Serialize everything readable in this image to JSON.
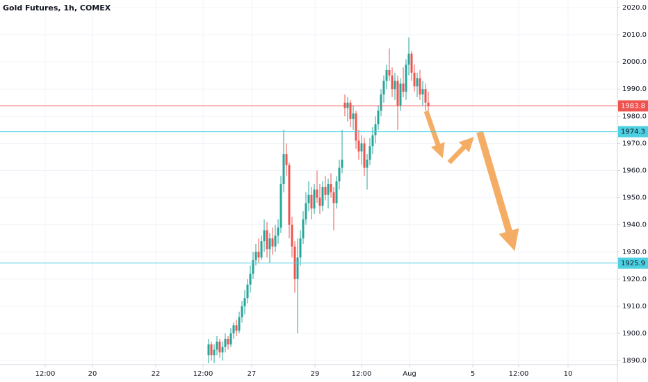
{
  "chart_data": {
    "type": "candlestick",
    "title": "Gold Futures, 1h, COMEX",
    "open": [
      1892,
      1896,
      1892,
      1894,
      1897,
      1893,
      1895,
      1898,
      1896,
      1900,
      1903,
      1901,
      1906,
      1910,
      1913,
      1918,
      1922,
      1927,
      1930,
      1928,
      1934,
      1938,
      1931,
      1935,
      1932,
      1936,
      1939,
      1955,
      1966,
      1962,
      1940,
      1932,
      1920,
      1928,
      1935,
      1942,
      1948,
      1951,
      1946,
      1953,
      1950,
      1947,
      1954,
      1951,
      1955,
      1952,
      1948,
      1956,
      1961,
      1985,
      1983,
      1985,
      1979,
      1981,
      1971,
      1967,
      1970,
      1961,
      1964,
      1969,
      1973,
      1977,
      1982,
      1988,
      1993,
      1997,
      1995,
      1990,
      1993,
      1984,
      1992,
      1989,
      1999,
      2003,
      1996,
      1991,
      1994,
      1988,
      1990,
      1985
    ],
    "high": [
      1898,
      1897,
      1896,
      1899,
      1898,
      1897,
      1900,
      1899,
      1902,
      1904,
      1905,
      1908,
      1912,
      1916,
      1920,
      1925,
      1930,
      1933,
      1935,
      1936,
      1942,
      1941,
      1937,
      1939,
      1940,
      1942,
      1958,
      1975,
      1970,
      1963,
      1943,
      1934,
      1935,
      1938,
      1945,
      1952,
      1956,
      1954,
      1955,
      1960,
      1955,
      1956,
      1958,
      1957,
      1959,
      1954,
      1958,
      1964,
      1975,
      1988,
      1987,
      1986,
      1984,
      1982,
      1975,
      1973,
      1972,
      1966,
      1972,
      1976,
      1980,
      1984,
      1990,
      1995,
      1999,
      2005,
      1998,
      1996,
      1995,
      1994,
      1998,
      2001,
      2009,
      2004,
      1999,
      1996,
      1997,
      1993,
      1992,
      1989
    ],
    "low": [
      1889,
      1890,
      1889,
      1892,
      1891,
      1890,
      1893,
      1894,
      1895,
      1898,
      1899,
      1900,
      1904,
      1907,
      1911,
      1915,
      1920,
      1925,
      1926,
      1927,
      1930,
      1928,
      1926,
      1929,
      1930,
      1933,
      1937,
      1952,
      1958,
      1935,
      1928,
      1915,
      1900,
      1925,
      1933,
      1940,
      1945,
      1942,
      1944,
      1948,
      1944,
      1945,
      1949,
      1946,
      1950,
      1938,
      1946,
      1953,
      1959,
      1980,
      1978,
      1976,
      1975,
      1968,
      1964,
      1962,
      1958,
      1953,
      1962,
      1966,
      1970,
      1975,
      1980,
      1985,
      1990,
      1993,
      1987,
      1986,
      1975,
      1982,
      1987,
      1986,
      1995,
      1993,
      1989,
      1987,
      1986,
      1984,
      1982,
      1982
    ],
    "close": [
      1896,
      1892,
      1894,
      1897,
      1893,
      1895,
      1898,
      1896,
      1900,
      1903,
      1901,
      1906,
      1910,
      1913,
      1918,
      1922,
      1927,
      1930,
      1928,
      1934,
      1938,
      1931,
      1935,
      1932,
      1936,
      1939,
      1955,
      1966,
      1962,
      1940,
      1932,
      1920,
      1928,
      1935,
      1942,
      1948,
      1951,
      1946,
      1953,
      1950,
      1947,
      1954,
      1951,
      1955,
      1952,
      1948,
      1956,
      1961,
      1964,
      1983,
      1985,
      1979,
      1981,
      1971,
      1967,
      1970,
      1961,
      1964,
      1969,
      1973,
      1977,
      1982,
      1988,
      1993,
      1997,
      1995,
      1990,
      1993,
      1984,
      1992,
      1989,
      1999,
      2003,
      1996,
      1991,
      1994,
      1988,
      1990,
      1985,
      1983.8
    ],
    "up_color": "#26a69a",
    "down_color": "#ef5350",
    "xlim": [
      -75,
      147
    ],
    "xticks": [
      {
        "value": -58.75,
        "label": "12:00"
      },
      {
        "value": -41.75,
        "label": "20"
      },
      {
        "value": -19,
        "label": "22"
      },
      {
        "value": -2,
        "label": "12:00"
      },
      {
        "value": 15.5,
        "label": "27"
      },
      {
        "value": 38.25,
        "label": "29"
      },
      {
        "value": 55,
        "label": "12:00"
      },
      {
        "value": 72.25,
        "label": "Aug"
      },
      {
        "value": 95,
        "label": "5"
      },
      {
        "value": 111.5,
        "label": "12:00"
      },
      {
        "value": 129.25,
        "label": "10"
      }
    ],
    "ylim": [
      1888.5,
      2022.8
    ],
    "yticks": [
      {
        "value": 1890,
        "label": "1890.0"
      },
      {
        "value": 1900,
        "label": "1900.0"
      },
      {
        "value": 1910,
        "label": "1910.0"
      },
      {
        "value": 1920,
        "label": "1920.0"
      },
      {
        "value": 1930,
        "label": "1930.0"
      },
      {
        "value": 1940,
        "label": "1940.0"
      },
      {
        "value": 1950,
        "label": "1950.0"
      },
      {
        "value": 1960,
        "label": "1960.0"
      },
      {
        "value": 1970,
        "label": "1970.0"
      },
      {
        "value": 1980,
        "label": "1980.0"
      },
      {
        "value": 1990,
        "label": "1990.0"
      },
      {
        "value": 2000,
        "label": "2000.0"
      },
      {
        "value": 2010,
        "label": "2010.0"
      },
      {
        "value": 2020,
        "label": "2020.0"
      }
    ],
    "grid": true,
    "price_lines": [
      {
        "value": 1983.8,
        "color": "#ef5350",
        "text_color": "#ffffff"
      },
      {
        "value": 1974.3,
        "color": "#4dd0e1",
        "text_color": "#131722"
      },
      {
        "value": 1925.9,
        "color": "#4dd0e1",
        "text_color": "#131722"
      }
    ]
  }
}
